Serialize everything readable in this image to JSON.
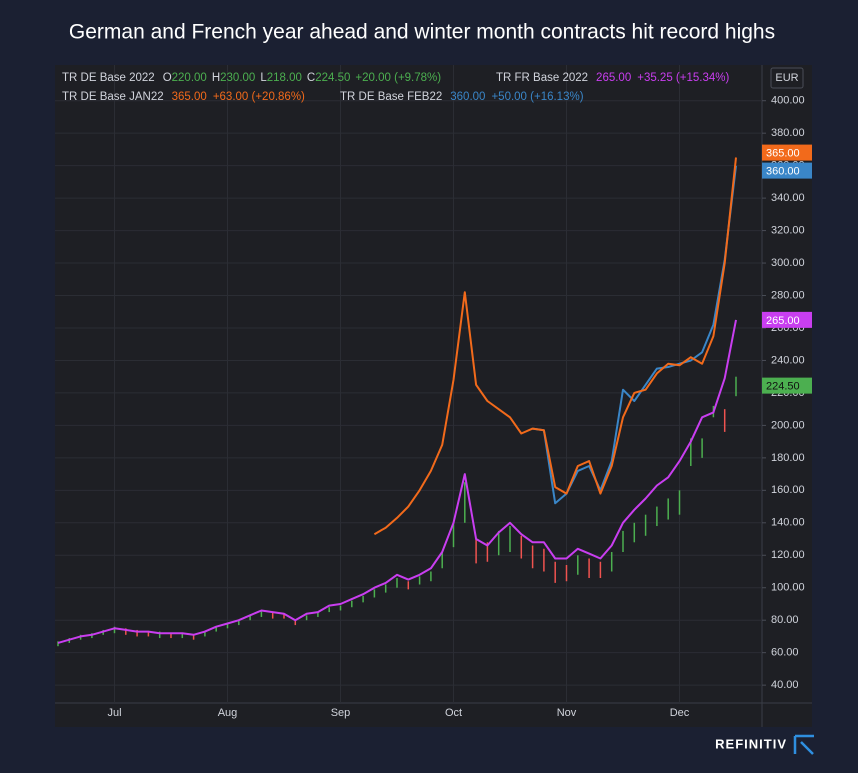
{
  "chart_data": {
    "type": "line",
    "title": "German and French year ahead and winter month contracts hit record highs",
    "currency": "EUR",
    "brand": "REFINITIV",
    "categories": [
      null,
      null,
      null,
      null,
      null,
      "Jul",
      null,
      null,
      null,
      null,
      null,
      null,
      null,
      null,
      null,
      "Aug",
      null,
      null,
      null,
      null,
      null,
      null,
      null,
      null,
      null,
      "Sep",
      null,
      null,
      null,
      null,
      null,
      null,
      null,
      null,
      null,
      "Oct",
      null,
      null,
      null,
      null,
      null,
      null,
      null,
      null,
      null,
      "Nov",
      null,
      null,
      null,
      null,
      null,
      null,
      null,
      null,
      null,
      "Dec",
      null,
      null,
      null,
      null,
      null
    ],
    "ylim": [
      29,
      422
    ],
    "yticks": [
      {
        "value": 40,
        "label": "40.00"
      },
      {
        "value": 60,
        "label": "60.00"
      },
      {
        "value": 80,
        "label": "80.00"
      },
      {
        "value": 100,
        "label": "100.00"
      },
      {
        "value": 120,
        "label": "120.00"
      },
      {
        "value": 140,
        "label": "140.00"
      },
      {
        "value": 160,
        "label": "160.00"
      },
      {
        "value": 180,
        "label": "180.00"
      },
      {
        "value": 200,
        "label": "200.00"
      },
      {
        "value": 220,
        "label": "220.00"
      },
      {
        "value": 240,
        "label": "240.00"
      },
      {
        "value": 260,
        "label": "260.00"
      },
      {
        "value": 280,
        "label": "280.00"
      },
      {
        "value": 300,
        "label": "300.00"
      },
      {
        "value": 320,
        "label": "320.00"
      },
      {
        "value": 340,
        "label": "340.00"
      },
      {
        "value": 360,
        "label": "360.00"
      },
      {
        "value": 380,
        "label": "380.00"
      },
      {
        "value": 400,
        "label": "400.00"
      }
    ],
    "grid": true,
    "series": [
      {
        "name": "TR FR Base 2022",
        "color": "#c93ef0",
        "last_label": "265.00",
        "change": "+35.25 (+15.34%)",
        "values": [
          66,
          68,
          70,
          71,
          73,
          75,
          74,
          73,
          73,
          72,
          72,
          72,
          71,
          73,
          76,
          78,
          80,
          83,
          86,
          85,
          84,
          80,
          84,
          85,
          89,
          90,
          93,
          96,
          100,
          103,
          108,
          105,
          108,
          112,
          122,
          140,
          170,
          130,
          126,
          134,
          140,
          133,
          128,
          128,
          118,
          118,
          124,
          121,
          118,
          126,
          140,
          148,
          155,
          163,
          168,
          178,
          190,
          205,
          208,
          229,
          265
        ]
      },
      {
        "name": "TR DE Base JAN22",
        "color": "#f26a1b",
        "last_label": "365.00",
        "change": "+63.00 (+20.86%)",
        "values": [
          null,
          null,
          null,
          null,
          null,
          null,
          null,
          null,
          null,
          null,
          null,
          null,
          null,
          null,
          null,
          null,
          null,
          null,
          null,
          null,
          null,
          null,
          null,
          null,
          null,
          null,
          null,
          null,
          133,
          137,
          143,
          150,
          160,
          172,
          188,
          228,
          282,
          225,
          215,
          210,
          205,
          195,
          198,
          197,
          162,
          158,
          175,
          178,
          158,
          175,
          205,
          220,
          222,
          232,
          238,
          237,
          242,
          238,
          255,
          300,
          365
        ]
      },
      {
        "name": "TR DE Base FEB22",
        "color": "#3a86c8",
        "last_label": "360.00",
        "change": "+50.00 (+16.13%)",
        "values": [
          null,
          null,
          null,
          null,
          null,
          null,
          null,
          null,
          null,
          null,
          null,
          null,
          null,
          null,
          null,
          null,
          null,
          null,
          null,
          null,
          null,
          null,
          null,
          null,
          null,
          null,
          null,
          null,
          null,
          null,
          null,
          null,
          null,
          null,
          null,
          null,
          null,
          null,
          null,
          null,
          null,
          null,
          198,
          197,
          152,
          158,
          172,
          175,
          160,
          178,
          222,
          215,
          225,
          235,
          236,
          238,
          240,
          245,
          262,
          302,
          360
        ]
      }
    ],
    "bars": {
      "name": "TR DE Base 2022",
      "up_color": "#4caf50",
      "down_color": "#ef5350",
      "low": [
        64,
        66,
        68,
        69,
        71,
        72,
        71,
        70,
        70,
        69,
        69,
        69,
        68,
        70,
        73,
        75,
        77,
        80,
        82,
        81,
        81,
        77,
        80,
        82,
        85,
        86,
        88,
        91,
        94,
        97,
        100,
        99,
        102,
        104,
        112,
        125,
        140,
        115,
        116,
        120,
        122,
        118,
        112,
        110,
        103,
        104,
        108,
        106,
        106,
        110,
        122,
        128,
        132,
        138,
        142,
        145,
        175,
        180,
        205,
        196,
        218
      ],
      "high": [
        67,
        69,
        71,
        72,
        74,
        76,
        75,
        74,
        73,
        73,
        72,
        72,
        71,
        73,
        76,
        78,
        80,
        83,
        86,
        85,
        84,
        80,
        83,
        85,
        88,
        89,
        92,
        95,
        99,
        102,
        106,
        104,
        107,
        110,
        122,
        140,
        165,
        130,
        128,
        135,
        138,
        132,
        126,
        124,
        116,
        114,
        120,
        118,
        116,
        122,
        135,
        140,
        145,
        150,
        155,
        160,
        192,
        192,
        212,
        210,
        230
      ],
      "ohlc_readout": [
        {
          "label": "O",
          "value": "220.00"
        },
        {
          "label": "H",
          "value": "230.00"
        },
        {
          "label": "L",
          "value": "218.00"
        },
        {
          "label": "C",
          "value": "224.50"
        }
      ],
      "change": "+20.00 (+9.78%)",
      "last": 224.5,
      "last_label": "224.50"
    }
  }
}
